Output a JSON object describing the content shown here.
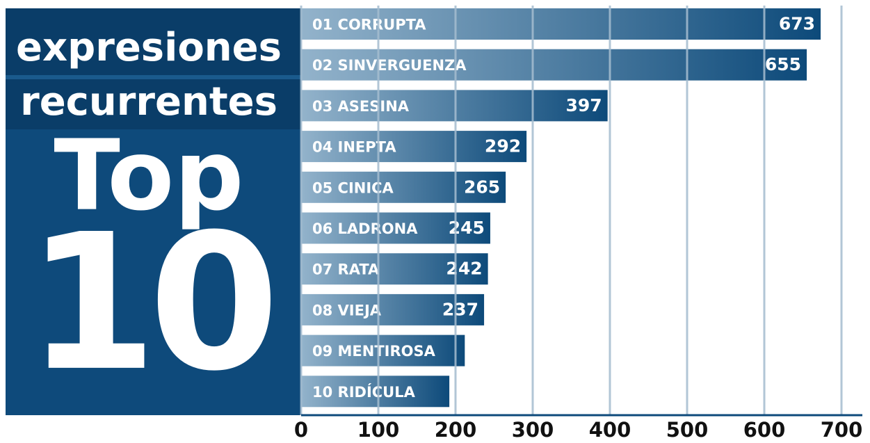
{
  "chart_data": {
    "type": "bar",
    "orientation": "horizontal",
    "title_lines": [
      "expresiones",
      "recurrentes"
    ],
    "subtitle_lines": [
      "Top",
      "10"
    ],
    "categories": [
      "01 CORRUPTA",
      "02 SINVERGUENZA",
      "03 ASESINA",
      "04 INEPTA",
      "05 CINICA",
      "06 LADRONA",
      "07 RATA",
      "08 VIEJA",
      "09 MENTIROSA",
      "10 RIDÍCULA"
    ],
    "values": [
      673,
      655,
      397,
      292,
      265,
      245,
      242,
      237,
      212,
      192
    ],
    "value_labels": [
      "673",
      "655",
      "397",
      "292",
      "265",
      "245",
      "242",
      "237",
      null,
      null
    ],
    "color": "#0d4a7a",
    "xlim": [
      0,
      700
    ],
    "xticks": [
      0,
      100,
      200,
      300,
      400,
      500,
      600,
      700
    ],
    "grid": true
  }
}
